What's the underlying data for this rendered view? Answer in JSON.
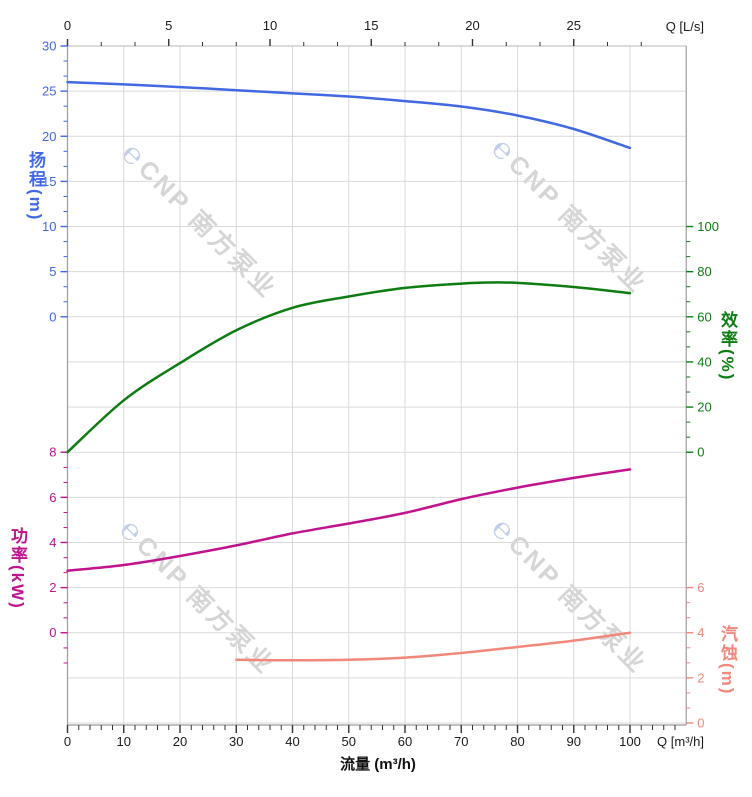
{
  "chart_data": {
    "type": "line",
    "title": "",
    "description": "Pump performance curves: head, efficiency, power and NPSH versus flow",
    "x_axis_bottom": {
      "label": "流量 (m³/h)",
      "unit_label": "Q [m³/h]",
      "min": 0,
      "max": 110,
      "majors": [
        0,
        10,
        20,
        30,
        40,
        50,
        60,
        70,
        80,
        90,
        100
      ],
      "minor_step": 2,
      "minor_end": 108
    },
    "x_axis_top": {
      "unit_label": "Q [L/s]",
      "min": 0,
      "max": 30.56,
      "majors": [
        0,
        5,
        10,
        15,
        20,
        25
      ],
      "minor_step": 1.66667,
      "minor_end": 28.34
    },
    "y_axes": {
      "head": {
        "title": "扬程(m)",
        "side": "left",
        "color": "#4169e1",
        "min": 0,
        "max": 30,
        "majors": [
          30,
          25,
          20,
          15,
          10,
          5,
          0
        ],
        "minor_step": 1.66667,
        "row_span": [
          0,
          6
        ]
      },
      "efficiency": {
        "title": "效率(%)",
        "side": "right",
        "color": "#0e7c12",
        "min": 0,
        "max": 100,
        "majors": [
          100,
          80,
          60,
          40,
          20,
          0
        ],
        "minor_step": 6.66667,
        "row_span": [
          4,
          9
        ]
      },
      "power": {
        "title": "功率(kW)",
        "side": "left",
        "color": "#c2138f",
        "min": 0,
        "max": 8,
        "majors": [
          8,
          6,
          4,
          2,
          0
        ],
        "minor_step": 0.66667,
        "minor_start": -1.34,
        "row_span": [
          9,
          13
        ]
      },
      "npsh": {
        "title": "汽蚀(m)",
        "side": "right",
        "color": "#f1887b",
        "min": 0,
        "max": 6,
        "majors": [
          6,
          4,
          2,
          0
        ],
        "minor_step": 0.66667,
        "row_span": [
          12,
          15
        ]
      }
    },
    "series": [
      {
        "id": "head",
        "name": "扬程",
        "axis": "head",
        "color": "#4169e1",
        "points": [
          [
            0,
            26.0
          ],
          [
            10,
            25.75
          ],
          [
            20,
            25.45
          ],
          [
            30,
            25.1
          ],
          [
            40,
            24.75
          ],
          [
            50,
            24.4
          ],
          [
            60,
            23.9
          ],
          [
            70,
            23.3
          ],
          [
            80,
            22.3
          ],
          [
            90,
            20.8
          ],
          [
            100,
            18.7
          ]
        ]
      },
      {
        "id": "efficiency",
        "name": "效率",
        "axis": "efficiency",
        "color": "#0e7c12",
        "points": [
          [
            0,
            0
          ],
          [
            10,
            23
          ],
          [
            20,
            39.5
          ],
          [
            30,
            54
          ],
          [
            40,
            64
          ],
          [
            50,
            69
          ],
          [
            60,
            72.8
          ],
          [
            70,
            74.7
          ],
          [
            75,
            75.2
          ],
          [
            80,
            75.0
          ],
          [
            90,
            73.2
          ],
          [
            100,
            70.5
          ]
        ]
      },
      {
        "id": "power",
        "name": "功率",
        "axis": "power",
        "color": "#c2138f",
        "points": [
          [
            0,
            2.75
          ],
          [
            10,
            3.0
          ],
          [
            20,
            3.4
          ],
          [
            30,
            3.87
          ],
          [
            40,
            4.4
          ],
          [
            50,
            4.84
          ],
          [
            60,
            5.31
          ],
          [
            70,
            5.92
          ],
          [
            80,
            6.43
          ],
          [
            90,
            6.86
          ],
          [
            100,
            7.24
          ]
        ]
      },
      {
        "id": "npsh",
        "name": "汽蚀",
        "axis": "npsh",
        "color": "#f1887b",
        "points": [
          [
            30,
            2.8
          ],
          [
            40,
            2.78
          ],
          [
            50,
            2.8
          ],
          [
            60,
            2.9
          ],
          [
            70,
            3.1
          ],
          [
            80,
            3.37
          ],
          [
            90,
            3.65
          ],
          [
            100,
            4.0
          ]
        ]
      }
    ],
    "watermark": {
      "glyph": "℮",
      "text": "CNP 南方泵业"
    },
    "style": {
      "grid_color": "#d9d9d9",
      "spine_color": "#9c9c9c",
      "top_spine_color": "#c6c6c6",
      "tick_label_color": "#1a1a1a"
    }
  }
}
